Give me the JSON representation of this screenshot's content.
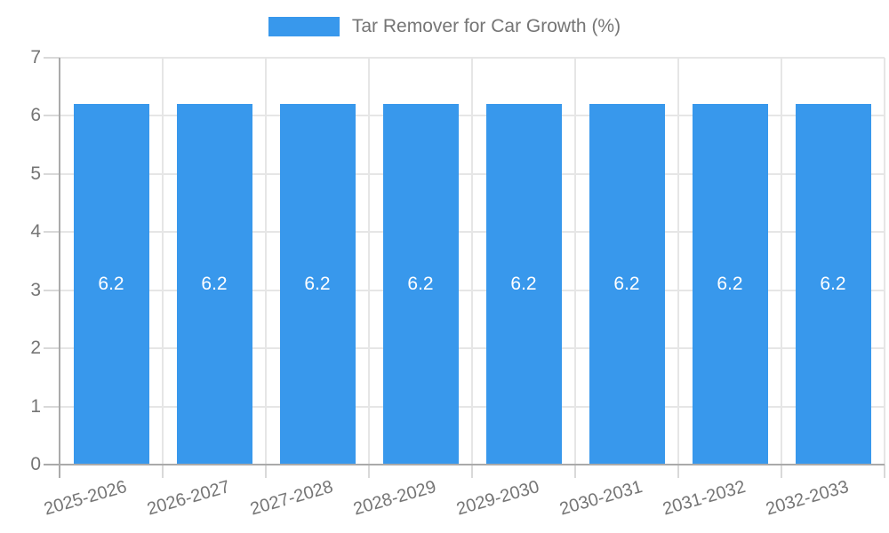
{
  "legend": {
    "label": "Tar Remover for Car Growth (%)"
  },
  "chart_data": {
    "type": "bar",
    "title": "Tar Remover for Car Growth (%)",
    "categories": [
      "2025-2026",
      "2026-2027",
      "2027-2028",
      "2028-2029",
      "2029-2030",
      "2030-2031",
      "2031-2032",
      "2032-2033"
    ],
    "values": [
      6.2,
      6.2,
      6.2,
      6.2,
      6.2,
      6.2,
      6.2,
      6.2
    ],
    "bar_labels": [
      "6.2",
      "6.2",
      "6.2",
      "6.2",
      "6.2",
      "6.2",
      "6.2",
      "6.2"
    ],
    "xlabel": "",
    "ylabel": "",
    "ylim": [
      0,
      7
    ],
    "yticks": [
      0,
      1,
      2,
      3,
      4,
      5,
      6,
      7
    ],
    "grid": true,
    "legend_position": "top",
    "colors": {
      "bar": "#3898EC",
      "bar_label": "#ffffff",
      "grid": "#e6e6e6",
      "axis": "#aaaaaa",
      "tick": "#d9d9d9",
      "tick_label": "#757575",
      "legend_text": "#757575"
    }
  }
}
